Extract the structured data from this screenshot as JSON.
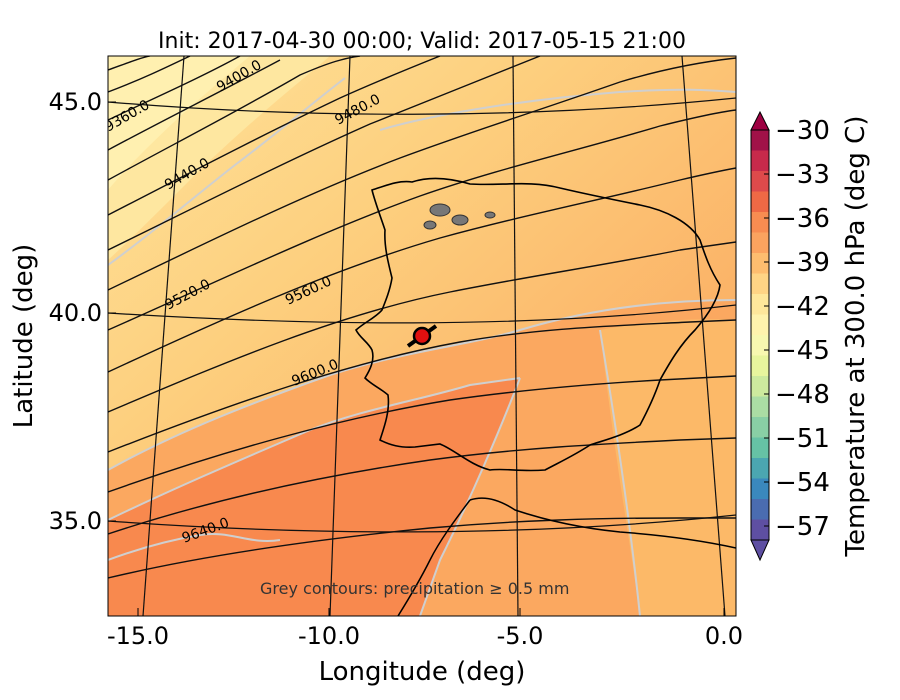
{
  "title": "Init: 2017-04-30 00:00; Valid: 2017-05-15 21:00",
  "note": "Grey contours: precipitation ≥ 0.5 mm",
  "xlabel": "Longitude (deg)",
  "ylabel": "Latitude (deg)",
  "xticks": [
    "-15.0",
    "-10.0",
    "-5.0",
    "0.0"
  ],
  "yticks": [
    "45.0",
    "40.0",
    "35.0"
  ],
  "colorbar": {
    "label": "Temperature at 300.0 hPa (deg C)",
    "ticks": [
      "-30",
      "-33",
      "-36",
      "-39",
      "-42",
      "-45",
      "-48",
      "-51",
      "-54",
      "-57"
    ],
    "colors": [
      "#a11248",
      "#c72a4b",
      "#dd4a4b",
      "#ef6945",
      "#f88c51",
      "#fba35f",
      "#fdbd6f",
      "#fed485",
      "#fee79b",
      "#fff3ad",
      "#f8f8b0",
      "#e8f59d",
      "#cdea9e",
      "#abdda4",
      "#89cfa5",
      "#66c2a5",
      "#4ba6b1",
      "#3a88bd",
      "#4a6cb0",
      "#5e4fa2"
    ]
  },
  "contour_labels": [
    "9360.0",
    "9400.0",
    "9440.0",
    "9480.0",
    "9520.0",
    "9560.0",
    "9600.0",
    "9640.0"
  ],
  "marker": {
    "lon": -7.5,
    "lat": 39.3
  },
  "chart_data": {
    "type": "map",
    "title": "Init: 2017-04-30 00:00; Valid: 2017-05-15 21:00",
    "xlabel": "Longitude (deg)",
    "ylabel": "Latitude (deg)",
    "xlim": [
      -16,
      0.3
    ],
    "ylim": [
      32.5,
      46
    ],
    "field": "Temperature at 300.0 hPa (deg C)",
    "color_range": [
      -57,
      -30
    ],
    "geopotential_contours": [
      9360,
      9400,
      9440,
      9480,
      9520,
      9560,
      9600,
      9640
    ],
    "marker": {
      "lon": -7.5,
      "lat": 39.3
    }
  }
}
